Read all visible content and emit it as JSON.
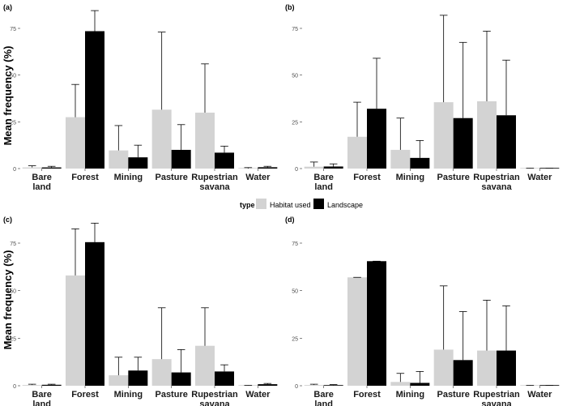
{
  "figure": {
    "ylabel": "Mean frequency (%)",
    "legend": {
      "title": "type",
      "items": [
        {
          "label": "Habitat used",
          "color": "#d3d3d3"
        },
        {
          "label": "Landscape",
          "color": "#000000"
        }
      ],
      "placement": "center"
    }
  },
  "chart_data": [
    {
      "type": "bar",
      "panel_label": "(a)",
      "categories": [
        "Bare\nland",
        "Forest",
        "Mining",
        "Pasture",
        "Rupestrian\nsavana",
        "Water"
      ],
      "ylim": [
        0,
        85
      ],
      "yticks": [
        0,
        25,
        50,
        75
      ],
      "series": [
        {
          "name": "Habitat used",
          "values": [
            0.6,
            27.5,
            9.7,
            31.5,
            29.9,
            0.0
          ],
          "error_upper": [
            1.5,
            45.0,
            23.0,
            73.0,
            56.0,
            0.5
          ]
        },
        {
          "name": "Landscape",
          "values": [
            0.6,
            73.5,
            6.0,
            10.0,
            8.5,
            0.7
          ],
          "error_upper": [
            1.2,
            84.5,
            12.5,
            23.5,
            12.0,
            1.2
          ]
        }
      ]
    },
    {
      "type": "bar",
      "panel_label": "(b)",
      "categories": [
        "Bare\nland",
        "Forest",
        "Mining",
        "Pasture",
        "Rupestrian\nsavana",
        "Water"
      ],
      "ylim": [
        0,
        85
      ],
      "yticks": [
        0,
        25,
        50,
        75
      ],
      "series": [
        {
          "name": "Habitat used",
          "values": [
            1.0,
            17.0,
            10.0,
            35.5,
            36.0,
            0.0
          ],
          "error_upper": [
            3.5,
            35.5,
            27.0,
            82.0,
            73.5,
            0.2
          ]
        },
        {
          "name": "Landscape",
          "values": [
            1.1,
            32.0,
            5.7,
            27.0,
            28.5,
            0.0
          ],
          "error_upper": [
            2.5,
            59.0,
            15.0,
            67.5,
            58.0,
            0.2
          ]
        }
      ]
    },
    {
      "type": "bar",
      "panel_label": "(c)",
      "categories": [
        "Bare\nland",
        "Forest",
        "Mining",
        "Pasture",
        "Rupestrian\nsavana",
        "Water"
      ],
      "ylim": [
        0,
        87
      ],
      "yticks": [
        0,
        25,
        50,
        75
      ],
      "series": [
        {
          "name": "Habitat used",
          "values": [
            0.4,
            58.0,
            5.5,
            14.0,
            21.0,
            0.0
          ],
          "error_upper": [
            0.8,
            82.5,
            15.0,
            41.0,
            41.0,
            0.2
          ]
        },
        {
          "name": "Landscape",
          "values": [
            0.5,
            75.5,
            8.0,
            7.0,
            7.5,
            0.8
          ],
          "error_upper": [
            0.8,
            85.5,
            15.0,
            19.0,
            11.0,
            1.2
          ]
        }
      ]
    },
    {
      "type": "bar",
      "panel_label": "(d)",
      "categories": [
        "Bare\nland",
        "Forest",
        "Mining",
        "Pasture",
        "Rupestrian\nsavana",
        "Water"
      ],
      "ylim": [
        0,
        87
      ],
      "yticks": [
        0,
        25,
        50,
        75
      ],
      "series": [
        {
          "name": "Habitat used",
          "values": [
            0.4,
            57.0,
            2.0,
            19.0,
            18.5,
            0.0
          ],
          "error_upper": [
            0.8,
            57.0,
            6.5,
            52.5,
            45.0,
            0.2
          ]
        },
        {
          "name": "Landscape",
          "values": [
            0.3,
            65.5,
            1.5,
            13.5,
            18.5,
            0.0
          ],
          "error_upper": [
            0.6,
            65.5,
            7.5,
            39.0,
            42.0,
            0.2
          ]
        }
      ]
    }
  ]
}
